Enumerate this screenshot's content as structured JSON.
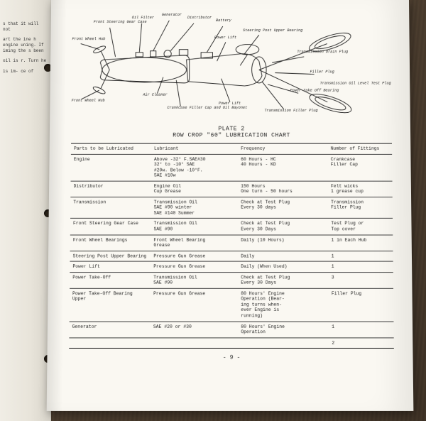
{
  "plate": {
    "line1": "PLATE 2",
    "line2": "ROW CROP \"60\" LUBRICATION CHART"
  },
  "headers": {
    "parts": "Parts to be Lubricated",
    "lubricant": "Lubricant",
    "frequency": "Frequency",
    "fittings": "Number of Fittings"
  },
  "rows": [
    {
      "parts": "Engine",
      "lubricant": "Above -32° F.SAE#30\n32° to -10° SAE\n#20w. Below -10°F.\nSAE #10w",
      "frequency": "60 Hours - HC\n40 Hours - KD",
      "fittings": "Crankcase\nFiller Cap"
    },
    {
      "parts": "Distributor",
      "lubricant": "Engine Oil\nCup Grease",
      "frequency": "150 Hours\nOne turn - 50 hours",
      "fittings": "Felt wicks\n1 grease cup"
    },
    {
      "parts": "Transmission",
      "lubricant": "Transmission Oil\nSAE #90 winter\nSAE #140 Summer",
      "frequency": "Check at Test Plug\nEvery 30 days",
      "fittings": "Transmission\nFiller Plug"
    },
    {
      "parts": "Front Steering Gear Case",
      "lubricant": "Transmission Oil\nSAE #90",
      "frequency": "Check at Test Plug\nEvery 30 Days",
      "fittings": "Test Plug or\nTop cover"
    },
    {
      "parts": "Front Wheel Bearings",
      "lubricant": "Front Wheel Bearing\nGrease",
      "frequency": "Daily (10 Hours)",
      "fittings": "1 in Each Hub"
    },
    {
      "parts": "Steering Post Upper Bearing",
      "lubricant": "Pressure Gun Grease",
      "frequency": "Daily",
      "fittings": "1"
    },
    {
      "parts": "Power Lift",
      "lubricant": "Pressure Gun Grease",
      "frequency": "Daily (When Used)",
      "fittings": "1"
    },
    {
      "parts": "Power Take-Off",
      "lubricant": "Transmission Oil\nSAE #90",
      "frequency": "Check at Test Plug\nEvery 30 Days",
      "fittings": "3"
    },
    {
      "parts": "Power Take-Off Bearing Upper",
      "lubricant": "Pressure Gun Grease",
      "frequency": "80 Hours' Engine\nOperation (Bear-\ning turns when-\never Engine is\nrunning)",
      "fittings": "Filler Plug"
    },
    {
      "parts": "Generator",
      "lubricant": "SAE #20 or #30",
      "frequency": "80 Hours' Engine\nOperation",
      "fittings": "1"
    },
    {
      "parts": "",
      "lubricant": "",
      "frequency": "",
      "fittings": "2"
    }
  ],
  "page_number": "- 9 -",
  "diagram_labels": {
    "front_steering": "Front Steering Gear Case",
    "oil_filter": "Oil Filter",
    "generator": "Generator",
    "distributor": "Distributor",
    "battery": "Battery",
    "front_hub_l": "Front Wheel Hub",
    "front_hub_r": "Front Wheel Hub",
    "air_cleaner": "Air Cleaner",
    "power_lift_l": "Power Lift",
    "power_lift_r": "Power Lift",
    "steering_post": "Steering Post Upper Bearing",
    "crankcase": "Crankcase Filler Cap and Oil Bayonet",
    "trans_filler": "Transmission Filler Plug",
    "trans_drain": "Transmission Drain Plug",
    "filler_plug": "Filler Plug",
    "pto_bearing": "Power Take Off Bearing",
    "trans_test": "Transmission Oil Level Test Plug"
  },
  "left_snippets": [
    "s that it will not",
    "art the ine h engine uning. If iming the s been",
    "oil is r. Turn he",
    "is im- ce of"
  ],
  "colors": {
    "paper": "#faf8f2",
    "ink": "#222222",
    "rule": "#444444"
  }
}
